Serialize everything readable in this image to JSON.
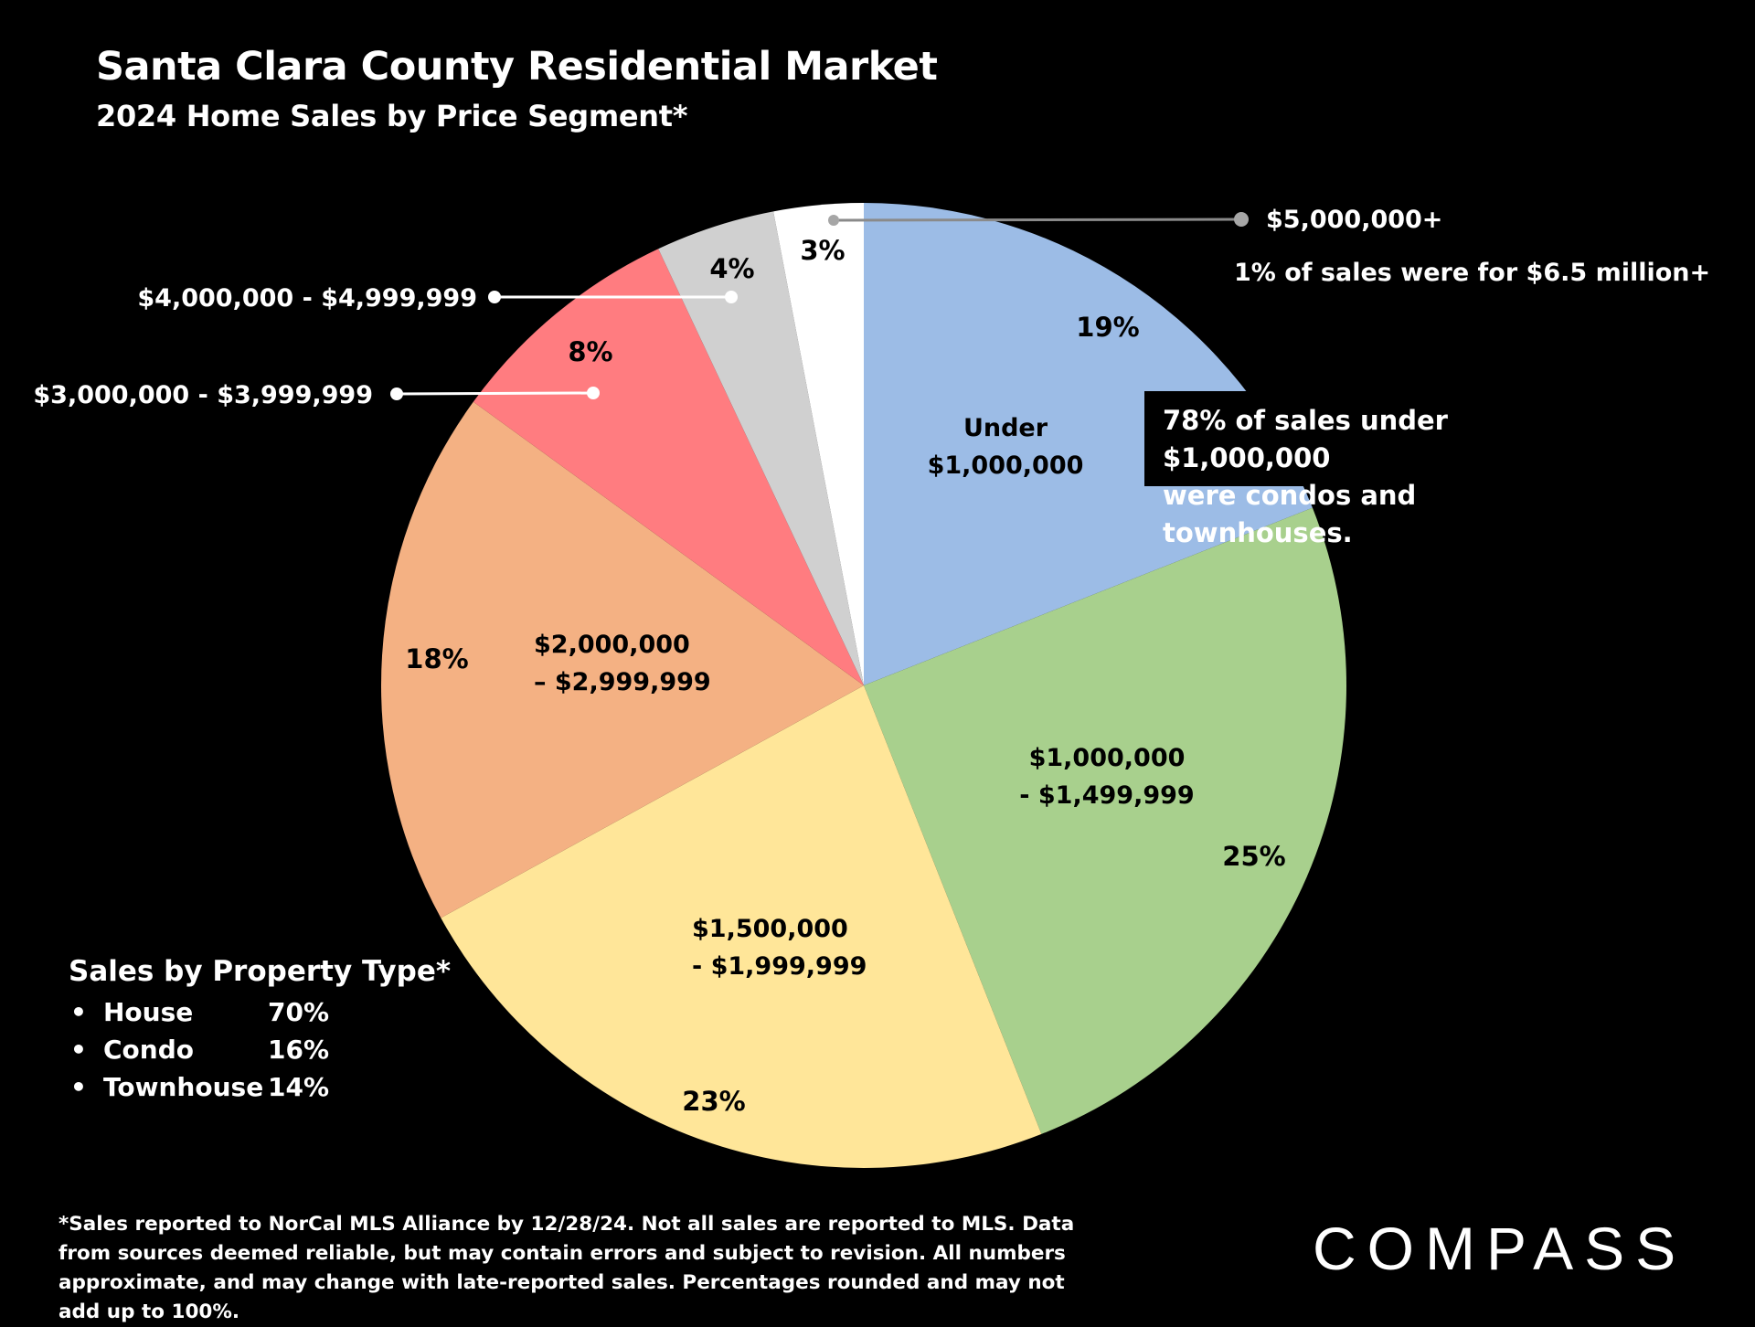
{
  "chart_data": {
    "type": "pie",
    "title": "Santa Clara County Residential Market",
    "subtitle": "2024 Home Sales by Price Segment*",
    "slices": [
      {
        "label": "Under $1,000,000",
        "value": 19,
        "value_label": "19%",
        "color": "#9CBCE6"
      },
      {
        "label": "$1,000,000 - $1,499,999",
        "value": 25,
        "value_label": "25%",
        "color": "#A8D08D"
      },
      {
        "label": "$1,500,000 - $1,999,999",
        "value": 23,
        "value_label": "23%",
        "color": "#FFE699"
      },
      {
        "label": "$2,000,000 – $2,999,999",
        "value": 18,
        "value_label": "18%",
        "color": "#F4B183"
      },
      {
        "label": "$3,000,000 - $3,999,999",
        "value": 8,
        "value_label": "8%",
        "color": "#FF7C80"
      },
      {
        "label": "$4,000,000 - $4,999,999",
        "value": 4,
        "value_label": "4%",
        "color": "#D0D0D0"
      },
      {
        "label": "$5,000,000+",
        "value": 3,
        "value_label": "3%",
        "color": "#FFFFFF"
      }
    ]
  },
  "inner_labels": {
    "under_1m": [
      "Under",
      "$1,000,000"
    ],
    "1m_1_5m": [
      "$1,000,000",
      "- $1,499,999"
    ],
    "1_5m_2m": [
      "$1,500,000",
      "- $1,999,999"
    ],
    "2m_3m": [
      "$2,000,000",
      "– $2,999,999"
    ]
  },
  "callouts": {
    "over_5m": "$5,000,000+",
    "4m_5m": "$4,000,000 - $4,999,999",
    "3m_4m": "$3,000,000 - $3,999,999"
  },
  "notes": {
    "big_sales": "1% of sales were for $6.5 million+",
    "condo_note_line1": "78% of sales under $1,000,000",
    "condo_note_line2": "were condos and townhouses."
  },
  "property_type": {
    "heading": "Sales by Property Type*",
    "items": [
      {
        "type": "House",
        "pct": "70%"
      },
      {
        "type": "Condo",
        "pct": "16%"
      },
      {
        "type": "Townhouse",
        "pct": "14%"
      }
    ]
  },
  "footnote": "*Sales reported to NorCal MLS Alliance by 12/28/24. Not all sales are reported to MLS. Data from sources deemed reliable, but may contain errors and subject to revision. All numbers approximate, and may change with late-reported sales. Percentages rounded and may not add up to 100%.",
  "logo": "COMPASS"
}
